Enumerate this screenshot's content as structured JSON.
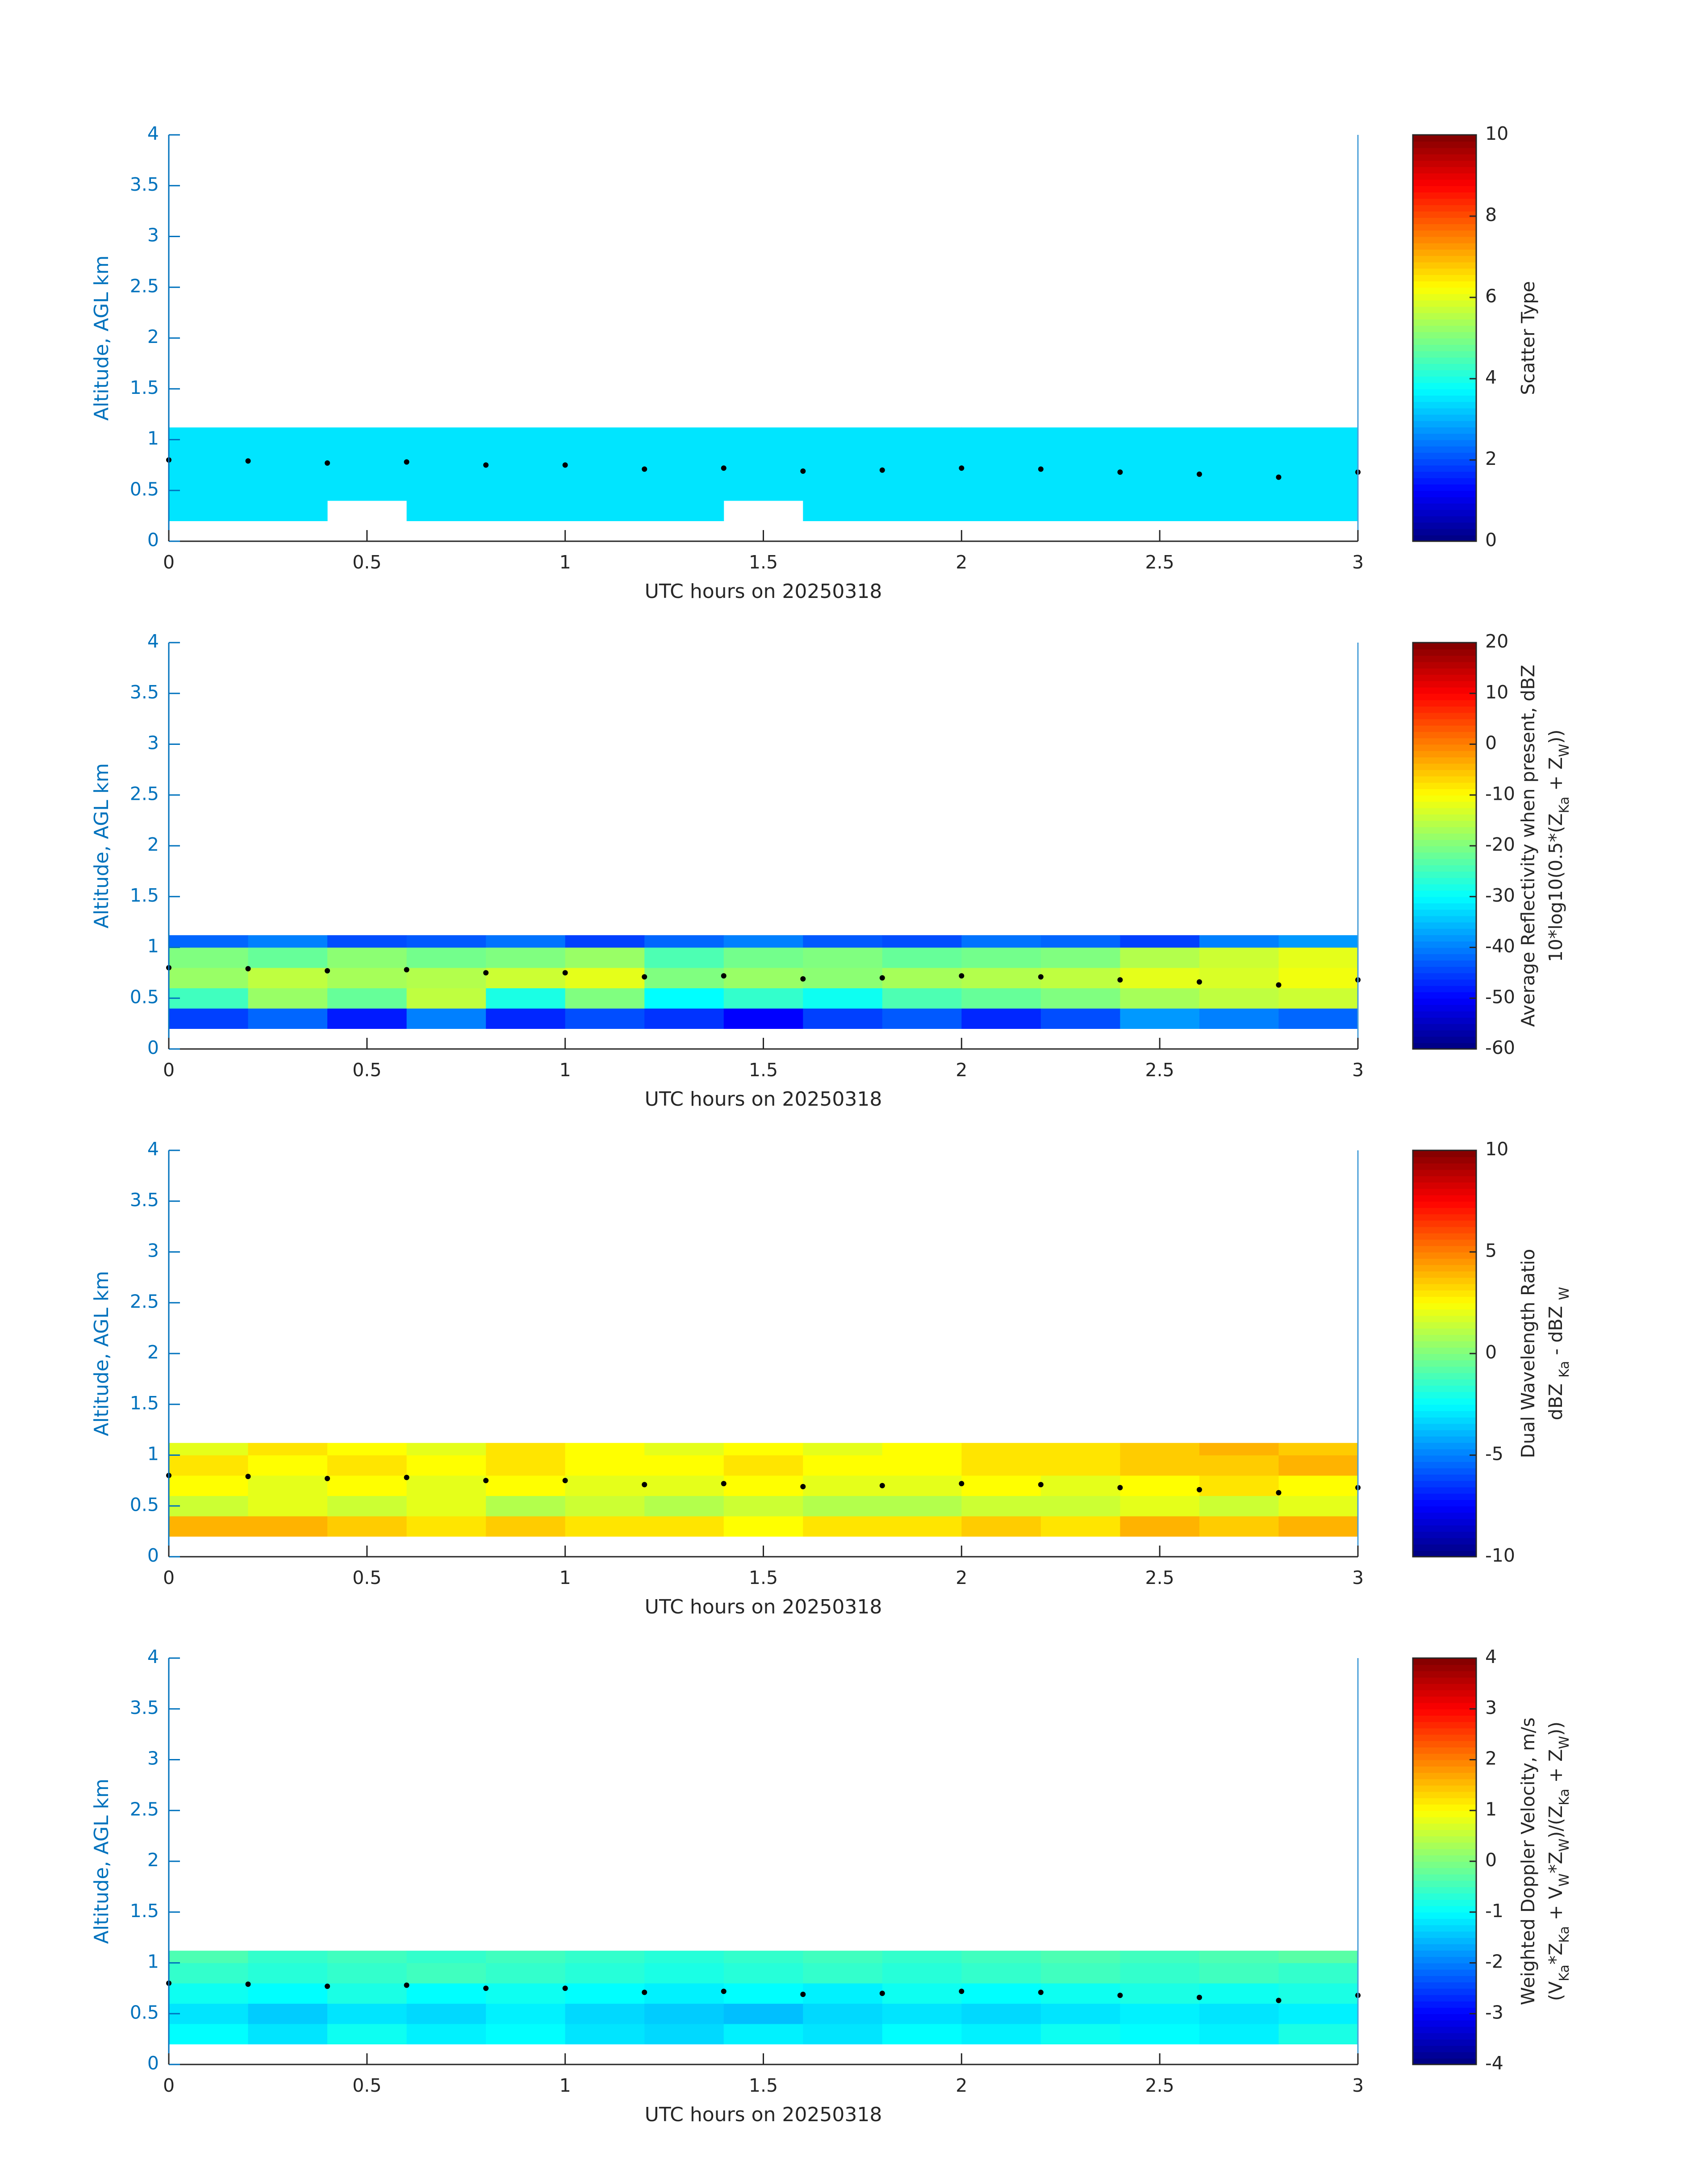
{
  "chart_data": [
    {
      "type": "heatmap",
      "colormap": "jet",
      "xlabel": "UTC hours on 20250318",
      "ylabel": "Altitude, AGL km",
      "xlim": [
        0,
        3
      ],
      "ylim": [
        0,
        4
      ],
      "xticks": [
        0,
        0.5,
        1,
        1.5,
        2,
        2.5,
        3
      ],
      "yticks": [
        0,
        0.5,
        1,
        1.5,
        2,
        2.5,
        3,
        3.5,
        4
      ],
      "clim": [
        0,
        10
      ],
      "cticks": [
        0,
        2,
        4,
        6,
        8,
        10
      ],
      "clabel": [
        [
          "Scatter Type"
        ]
      ],
      "x_edges": [
        0,
        0.2,
        0.4,
        0.6,
        0.8,
        1,
        1.2,
        1.4,
        1.6,
        1.8,
        2,
        2.2,
        2.4,
        2.6,
        2.8,
        3
      ],
      "y_edges": [
        0.2,
        0.4,
        0.6,
        0.8,
        1,
        1.12
      ],
      "values": [
        [
          3.5,
          3.5,
          null,
          3.5,
          3.5,
          3.5,
          3.5,
          null,
          3.5,
          3.5,
          3.5,
          3.5,
          3.5,
          3.5,
          3.5
        ],
        [
          3.5,
          3.5,
          3.5,
          3.5,
          3.5,
          3.5,
          3.5,
          3.5,
          3.5,
          3.5,
          3.5,
          3.5,
          3.5,
          3.5,
          3.5
        ],
        [
          3.5,
          3.5,
          3.5,
          3.5,
          3.5,
          3.5,
          3.5,
          3.5,
          3.5,
          3.5,
          3.5,
          3.5,
          3.5,
          3.5,
          3.5
        ],
        [
          3.5,
          3.5,
          3.5,
          3.5,
          3.5,
          3.5,
          3.5,
          3.5,
          3.5,
          3.5,
          3.5,
          3.5,
          3.5,
          3.5,
          3.5
        ],
        [
          3.5,
          3.5,
          3.5,
          3.5,
          3.5,
          3.5,
          3.5,
          3.5,
          3.5,
          3.5,
          3.5,
          3.5,
          3.5,
          3.5,
          3.5
        ]
      ],
      "markers": {
        "color": "#000000",
        "x": [
          0,
          0.2,
          0.4,
          0.6,
          0.8,
          1,
          1.2,
          1.4,
          1.6,
          1.8,
          2,
          2.2,
          2.4,
          2.6,
          2.8,
          3
        ],
        "y": [
          0.8,
          0.79,
          0.77,
          0.78,
          0.75,
          0.75,
          0.71,
          0.72,
          0.69,
          0.7,
          0.72,
          0.71,
          0.68,
          0.66,
          0.63,
          0.68
        ]
      }
    },
    {
      "type": "heatmap",
      "colormap": "jet",
      "xlabel": "UTC hours on 20250318",
      "ylabel": "Altitude, AGL km",
      "xlim": [
        0,
        3
      ],
      "ylim": [
        0,
        4
      ],
      "xticks": [
        0,
        0.5,
        1,
        1.5,
        2,
        2.5,
        3
      ],
      "yticks": [
        0,
        0.5,
        1,
        1.5,
        2,
        2.5,
        3,
        3.5,
        4
      ],
      "clim": [
        -60,
        20
      ],
      "cticks": [
        -60,
        -50,
        -40,
        -30,
        -20,
        -10,
        0,
        10,
        20
      ],
      "clabel": [
        [
          "Average Reflectivity when present, dBZ"
        ],
        [
          "10*log10(0.5*(Z",
          "Ka",
          " + Z",
          "W",
          "))"
        ]
      ],
      "x_edges": [
        0,
        0.2,
        0.4,
        0.6,
        0.8,
        1,
        1.2,
        1.4,
        1.6,
        1.8,
        2,
        2.2,
        2.4,
        2.6,
        2.8,
        3
      ],
      "y_edges": [
        0.2,
        0.4,
        0.6,
        0.8,
        1,
        1.12
      ],
      "values": [
        [
          -45,
          -42,
          -48,
          -40,
          -47,
          -44,
          -46,
          -50,
          -45,
          -43,
          -47,
          -44,
          -38,
          -40,
          -42
        ],
        [
          -25,
          -18,
          -22,
          -15,
          -28,
          -20,
          -30,
          -26,
          -29,
          -24,
          -22,
          -20,
          -17,
          -15,
          -14
        ],
        [
          -18,
          -15,
          -17,
          -16,
          -14,
          -12,
          -20,
          -18,
          -19,
          -17,
          -16,
          -15,
          -12,
          -13,
          -11
        ],
        [
          -20,
          -22,
          -19,
          -21,
          -20,
          -18,
          -24,
          -21,
          -20,
          -22,
          -21,
          -20,
          -16,
          -14,
          -12
        ],
        [
          -42,
          -40,
          -44,
          -43,
          -41,
          -45,
          -42,
          -40,
          -43,
          -44,
          -41,
          -42,
          -45,
          -40,
          -38
        ]
      ],
      "markers": {
        "color": "#000000",
        "x": [
          0,
          0.2,
          0.4,
          0.6,
          0.8,
          1,
          1.2,
          1.4,
          1.6,
          1.8,
          2,
          2.2,
          2.4,
          2.6,
          2.8,
          3
        ],
        "y": [
          0.8,
          0.79,
          0.77,
          0.78,
          0.75,
          0.75,
          0.71,
          0.72,
          0.69,
          0.7,
          0.72,
          0.71,
          0.68,
          0.66,
          0.63,
          0.68
        ]
      }
    },
    {
      "type": "heatmap",
      "colormap": "jet",
      "xlabel": "UTC hours on 20250318",
      "ylabel": "Altitude, AGL km",
      "xlim": [
        0,
        3
      ],
      "ylim": [
        0,
        4
      ],
      "xticks": [
        0,
        0.5,
        1,
        1.5,
        2,
        2.5,
        3
      ],
      "yticks": [
        0,
        0.5,
        1,
        1.5,
        2,
        2.5,
        3,
        3.5,
        4
      ],
      "clim": [
        -10,
        10
      ],
      "cticks": [
        -10,
        -5,
        0,
        5,
        10
      ],
      "clabel": [
        [
          "Dual Wavelength Ratio"
        ],
        [
          "dBZ ",
          "Ka",
          " - dBZ ",
          "W"
        ]
      ],
      "x_edges": [
        0,
        0.2,
        0.4,
        0.6,
        0.8,
        1,
        1.2,
        1.4,
        1.6,
        1.8,
        2,
        2.2,
        2.4,
        2.6,
        2.8,
        3
      ],
      "y_edges": [
        0.2,
        0.4,
        0.6,
        0.8,
        1,
        1.12
      ],
      "values": [
        [
          4,
          4,
          3.5,
          3,
          3.5,
          3,
          3,
          2.5,
          3,
          3,
          3.5,
          3,
          4,
          3.5,
          4
        ],
        [
          1.5,
          2,
          1.5,
          2,
          1,
          1.5,
          1,
          1.5,
          1,
          1,
          1.5,
          1.5,
          2,
          1.5,
          2
        ],
        [
          2.5,
          2,
          2.5,
          2,
          2.5,
          2,
          2,
          2.5,
          2,
          2,
          2.5,
          2,
          2.5,
          3,
          2.5
        ],
        [
          3,
          2.5,
          3,
          2.5,
          3,
          2.5,
          2.5,
          3,
          2.5,
          2.5,
          3,
          3,
          3.5,
          3.5,
          4
        ],
        [
          2,
          3,
          2.5,
          2,
          3,
          2.5,
          2,
          2.5,
          2,
          2.5,
          3,
          3,
          3.5,
          4,
          3.5
        ]
      ],
      "markers": {
        "color": "#000000",
        "x": [
          0,
          0.2,
          0.4,
          0.6,
          0.8,
          1,
          1.2,
          1.4,
          1.6,
          1.8,
          2,
          2.2,
          2.4,
          2.6,
          2.8,
          3
        ],
        "y": [
          0.8,
          0.79,
          0.77,
          0.78,
          0.75,
          0.75,
          0.71,
          0.72,
          0.69,
          0.7,
          0.72,
          0.71,
          0.68,
          0.66,
          0.63,
          0.68
        ]
      }
    },
    {
      "type": "heatmap",
      "colormap": "jet",
      "xlabel": "UTC hours on 20250318",
      "ylabel": "Altitude, AGL km",
      "xlim": [
        0,
        3
      ],
      "ylim": [
        0,
        4
      ],
      "xticks": [
        0,
        0.5,
        1,
        1.5,
        2,
        2.5,
        3
      ],
      "yticks": [
        0,
        0.5,
        1,
        1.5,
        2,
        2.5,
        3,
        3.5,
        4
      ],
      "clim": [
        -4,
        4
      ],
      "cticks": [
        -4,
        -3,
        -2,
        -1,
        0,
        1,
        2,
        3,
        4
      ],
      "clabel": [
        [
          "Weighted Doppler Velocity, m/s"
        ],
        [
          "(V",
          "Ka",
          "*Z",
          "Ka",
          " + V",
          "W",
          "*Z",
          "W",
          ")/(Z",
          "Ka",
          " + Z",
          "W",
          "))"
        ]
      ],
      "x_edges": [
        0,
        0.2,
        0.4,
        0.6,
        0.8,
        1,
        1.2,
        1.4,
        1.6,
        1.8,
        2,
        2.2,
        2.4,
        2.6,
        2.8,
        3
      ],
      "y_edges": [
        0.2,
        0.4,
        0.6,
        0.8,
        1,
        1.12
      ],
      "values": [
        [
          -1,
          -1.2,
          -0.9,
          -1.1,
          -1,
          -1.2,
          -1.3,
          -1.1,
          -1.2,
          -1,
          -1.1,
          -0.9,
          -1,
          -1.1,
          -0.8
        ],
        [
          -1.2,
          -1.4,
          -1.2,
          -1.3,
          -1.1,
          -1.3,
          -1.4,
          -1.5,
          -1.3,
          -1.2,
          -1.3,
          -1.2,
          -1.1,
          -1.2,
          -1.1
        ],
        [
          -0.9,
          -1,
          -0.8,
          -1,
          -0.9,
          -1,
          -1.1,
          -1,
          -1.1,
          -0.9,
          -1,
          -0.9,
          -0.8,
          -0.9,
          -0.8
        ],
        [
          -0.6,
          -0.7,
          -0.6,
          -0.5,
          -0.6,
          -0.7,
          -0.8,
          -0.7,
          -0.6,
          -0.7,
          -0.6,
          -0.5,
          -0.6,
          -0.5,
          -0.6
        ],
        [
          -0.4,
          -0.6,
          -0.5,
          -0.6,
          -0.5,
          -0.6,
          -0.7,
          -0.6,
          -0.5,
          -0.6,
          -0.5,
          -0.4,
          -0.5,
          -0.4,
          -0.3
        ]
      ],
      "markers": {
        "color": "#000000",
        "x": [
          0,
          0.2,
          0.4,
          0.6,
          0.8,
          1,
          1.2,
          1.4,
          1.6,
          1.8,
          2,
          2.2,
          2.4,
          2.6,
          2.8,
          3
        ],
        "y": [
          0.8,
          0.79,
          0.77,
          0.78,
          0.75,
          0.75,
          0.71,
          0.72,
          0.69,
          0.7,
          0.72,
          0.71,
          0.68,
          0.66,
          0.63,
          0.68
        ]
      }
    }
  ]
}
